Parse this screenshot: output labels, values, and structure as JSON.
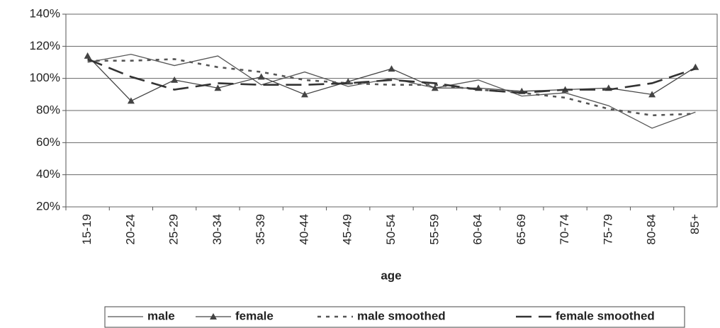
{
  "chart_data": {
    "type": "line",
    "x_label": "age",
    "categories": [
      "15-19",
      "20-24",
      "25-29",
      "30-34",
      "35-39",
      "40-44",
      "45-49",
      "50-54",
      "55-59",
      "60-64",
      "65-69",
      "70-74",
      "75-79",
      "80-84",
      "85+"
    ],
    "series": [
      {
        "name": "male",
        "color": "#555555",
        "style": "solid",
        "values": [
          110,
          115,
          108,
          114,
          96,
          104,
          95,
          100,
          94,
          99,
          89,
          91,
          83,
          69,
          79
        ]
      },
      {
        "name": "female",
        "color": "#444444",
        "style": "solid",
        "marker": "triangle",
        "values": [
          114,
          86,
          99,
          94,
          101,
          90,
          98,
          106,
          94,
          94,
          92,
          93,
          94,
          90,
          107
        ]
      },
      {
        "name": "male smoothed",
        "color": "#555555",
        "style": "dotted",
        "values": [
          111,
          111,
          112,
          107,
          104,
          99,
          97,
          96,
          96,
          93,
          91,
          88,
          81,
          77,
          78
        ]
      },
      {
        "name": "female smoothed",
        "color": "#333333",
        "style": "dashed",
        "values": [
          112,
          101,
          93,
          97,
          96,
          96,
          97,
          99,
          97,
          93,
          91,
          93,
          93,
          97,
          106
        ]
      }
    ],
    "ylim": [
      20,
      140
    ],
    "yticks": [
      {
        "value": 20,
        "label": "20%"
      },
      {
        "value": 40,
        "label": "40%"
      },
      {
        "value": 60,
        "label": "60%"
      },
      {
        "value": 80,
        "label": "80%"
      },
      {
        "value": 100,
        "label": "100%"
      },
      {
        "value": 120,
        "label": "120%"
      },
      {
        "value": 140,
        "label": "140%"
      }
    ],
    "grid": true,
    "legend": "bottom"
  }
}
